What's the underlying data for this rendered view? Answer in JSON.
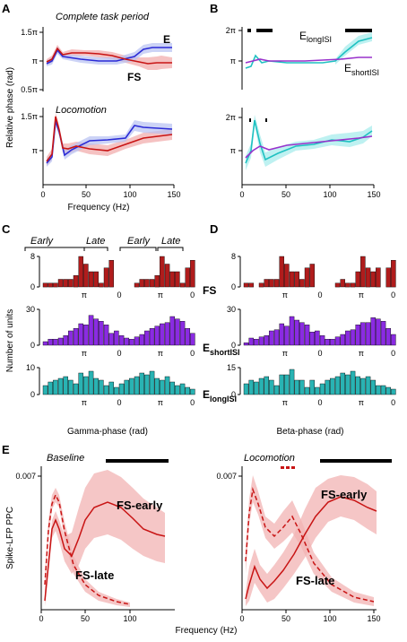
{
  "panels": {
    "A": "A",
    "B": "B",
    "C": "C",
    "D": "D",
    "E": "E"
  },
  "A": {
    "top_title": "Complete task period",
    "bottom_title": "Locomotion",
    "label_E": "E",
    "label_FS": "FS",
    "ylabel": "Relative phase (rad)",
    "xlabel": "Frequency (Hz)",
    "yticks_top": [
      "1.5π",
      "π",
      "0.5π"
    ],
    "yticks_bottom": [
      "1.5π",
      "π"
    ],
    "xticks": [
      "0",
      "50",
      "100",
      "150"
    ]
  },
  "B": {
    "label_long": "E",
    "label_long_sub": "longISI",
    "label_short": "E",
    "label_short_sub": "shortISI",
    "yticks": [
      "2π",
      "π"
    ],
    "xticks": [
      "0",
      "50",
      "100",
      "150"
    ]
  },
  "C": {
    "early1": "Early",
    "late1": "Late",
    "early2": "Early",
    "late2": "Late",
    "ylabel": "Number of units",
    "xlabel": "Gamma-phase (rad)",
    "rows": [
      {
        "label": "FS",
        "sub": "",
        "yticks": [
          "8",
          "0"
        ]
      },
      {
        "label": "E",
        "sub": "shortISI",
        "yticks": [
          "30",
          "0"
        ]
      },
      {
        "label": "E",
        "sub": "longISI",
        "yticks": [
          "10",
          "0"
        ]
      }
    ],
    "xticks": [
      "π",
      "0",
      "π",
      "0"
    ]
  },
  "D": {
    "xlabel": "Beta-phase (rad)",
    "rows": [
      {
        "yticks": [
          "8",
          "0"
        ]
      },
      {
        "yticks": [
          "30",
          "0"
        ]
      },
      {
        "yticks": [
          "15",
          "0"
        ]
      }
    ],
    "xticks": [
      "π",
      "0",
      "π",
      "0"
    ]
  },
  "E": {
    "left_title": "Baseline",
    "right_title": "Locomotion",
    "ylabel": "Spike-LFP PPC",
    "xlabel": "Frequency (Hz)",
    "ytick": "0.007",
    "fs_early": "FS-early",
    "fs_late": "FS-late",
    "xticks": [
      "0",
      "50",
      "100",
      "150"
    ]
  },
  "colors": {
    "E": "#2b2bd6",
    "FS": "#c81414",
    "fs_bar": "#b01c1c",
    "short_bar": "#8a2be2",
    "long_bar": "#29b3b3",
    "long_line": "#1fc1c1",
    "short_line": "#9932cc"
  },
  "chart_data": {
    "C_FS_counts": [
      1,
      1,
      1,
      2,
      2,
      2,
      3,
      8,
      6,
      4,
      4,
      1,
      5,
      7,
      0,
      0,
      0,
      0,
      1,
      2,
      2,
      2,
      3,
      8,
      6,
      4,
      4,
      1,
      5,
      7
    ],
    "C_short_counts": [
      3,
      5,
      5,
      6,
      8,
      12,
      14,
      18,
      17,
      25,
      22,
      20,
      17,
      10,
      12,
      8,
      6,
      5,
      7,
      9,
      12,
      14,
      16,
      18,
      19,
      24,
      22,
      20,
      14,
      10
    ]
  }
}
